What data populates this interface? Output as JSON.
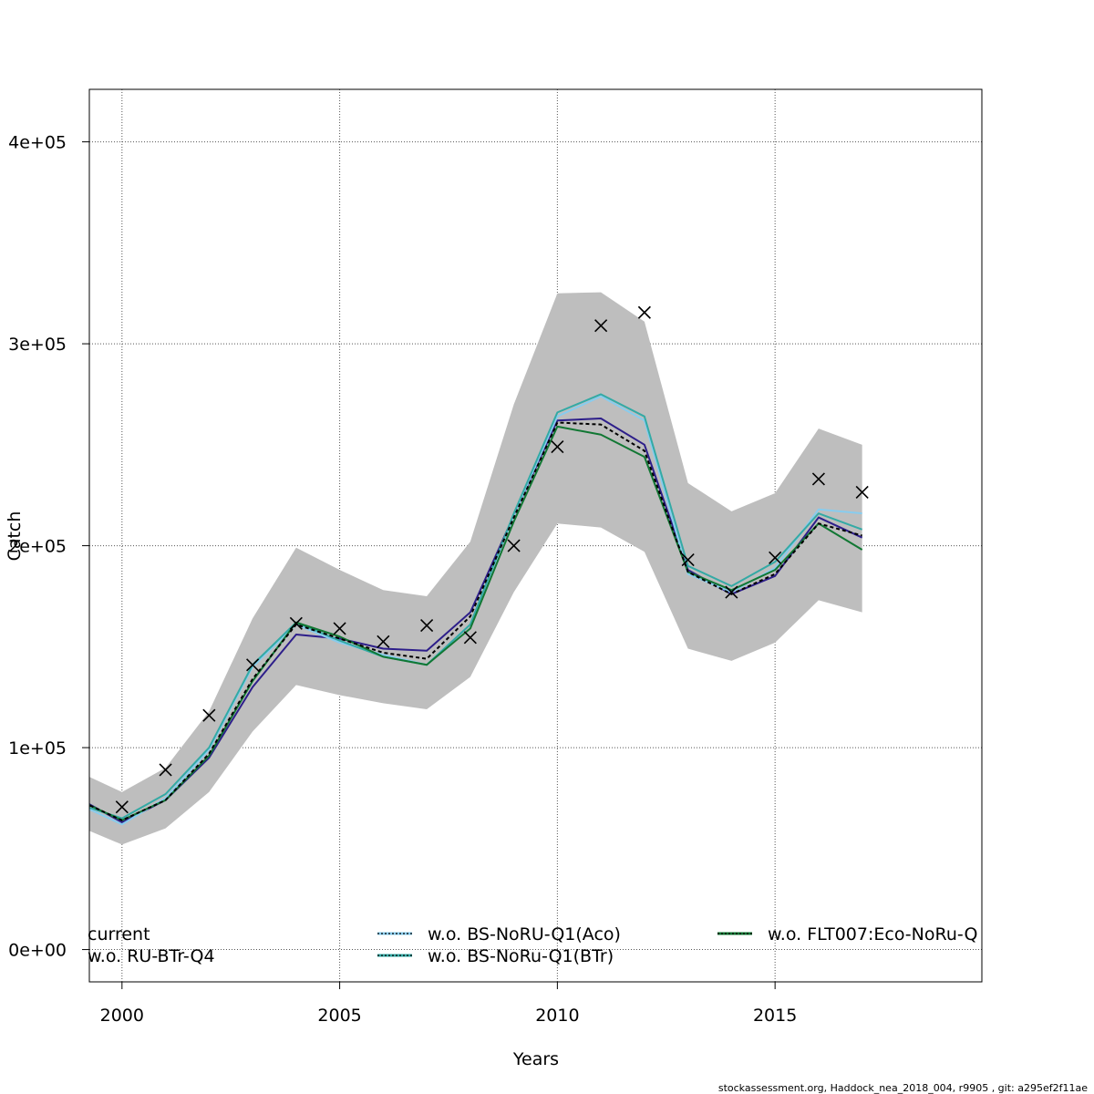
{
  "chart_data": {
    "type": "line",
    "xlabel": "Years",
    "ylabel": "Catch",
    "xlim": [
      1999.25,
      2019.75
    ],
    "ylim": [
      -16000,
      426000
    ],
    "x_ticks": [
      2000,
      2005,
      2010,
      2015
    ],
    "x_tick_labels": [
      "2000",
      "2005",
      "2010",
      "2015"
    ],
    "y_ticks": [
      0,
      100000,
      200000,
      300000,
      400000
    ],
    "y_tick_labels": [
      "0e+00",
      "1e+05",
      "2e+05",
      "3e+05",
      "4e+05"
    ],
    "grid": true,
    "legend_position": "bottom",
    "footer": "stockassessment.org, Haddock_nea_2018_004, r9905 , git: a295ef2f11ae",
    "confidence_band": {
      "x": [
        1999,
        2000,
        2001,
        2002,
        2003,
        2004,
        2005,
        2006,
        2007,
        2008,
        2009,
        2010,
        2011,
        2012,
        2013,
        2014,
        2015,
        2016,
        2017
      ],
      "upper": [
        88000,
        78000,
        90000,
        118000,
        164000,
        199000,
        188000,
        178000,
        175000,
        202000,
        270000,
        325000,
        325500,
        311000,
        231000,
        217000,
        226000,
        258000,
        250000
      ],
      "lower": [
        61000,
        52000,
        60000,
        78000,
        108000,
        131000,
        126000,
        122000,
        119000,
        135000,
        177000,
        211000,
        209000,
        197000,
        149000,
        143000,
        152000,
        173000,
        167000
      ],
      "color": "#bebebe"
    },
    "observed": {
      "x": [
        2000,
        2001,
        2002,
        2003,
        2004,
        2005,
        2006,
        2007,
        2008,
        2009,
        2010,
        2011,
        2012,
        2013,
        2014,
        2015,
        2016,
        2017
      ],
      "y": [
        70600,
        89000,
        116000,
        141000,
        161500,
        159000,
        152500,
        160500,
        154500,
        200000,
        249000,
        309000,
        315500,
        193000,
        177000,
        194000,
        233000,
        226500
      ]
    },
    "series": [
      {
        "name": "current",
        "color": "#000000",
        "dash": "4,3",
        "x": [
          1999,
          2000,
          2001,
          2002,
          2003,
          2004,
          2005,
          2006,
          2007,
          2008,
          2009,
          2010,
          2011,
          2012,
          2013,
          2014,
          2015,
          2016,
          2017
        ],
        "values": [
          74000,
          64000,
          74000,
          97000,
          134000,
          161000,
          154000,
          147000,
          144000,
          165000,
          214000,
          261000,
          260000,
          247000,
          187000,
          176000,
          186000,
          211000,
          205000
        ]
      },
      {
        "name": "w.o. RU-BTr-Q4",
        "color": "#2d1e8a",
        "dash": "",
        "x": [
          1999,
          2000,
          2001,
          2002,
          2003,
          2004,
          2005,
          2006,
          2007,
          2008,
          2009,
          2010,
          2011,
          2012,
          2013,
          2014,
          2015,
          2016,
          2017
        ],
        "values": [
          75000,
          63000,
          74000,
          95000,
          130000,
          156000,
          154000,
          149000,
          148000,
          167000,
          215000,
          262000,
          263000,
          250000,
          188000,
          176000,
          185000,
          214000,
          204000
        ]
      },
      {
        "name": "w.o. BS-NoRU-Q1(Aco)",
        "color": "#88ccee",
        "dash": "",
        "x": [
          1999,
          2000,
          2001,
          2002,
          2003,
          2004,
          2005,
          2006,
          2007,
          2008,
          2009,
          2010,
          2011,
          2012,
          2013,
          2014,
          2015,
          2016,
          2017
        ],
        "values": [
          72000,
          62000,
          75000,
          99000,
          140000,
          161000,
          152000,
          146000,
          141000,
          161000,
          215000,
          264000,
          274000,
          262000,
          186000,
          177000,
          189000,
          218000,
          216000
        ]
      },
      {
        "name": "w.o. BS-NoRu-Q1(BTr)",
        "color": "#33aaa5",
        "dash": "",
        "x": [
          1999,
          2000,
          2001,
          2002,
          2003,
          2004,
          2005,
          2006,
          2007,
          2008,
          2009,
          2010,
          2011,
          2012,
          2013,
          2014,
          2015,
          2016,
          2017
        ],
        "values": [
          72000,
          65000,
          77000,
          100000,
          141000,
          162000,
          153000,
          145000,
          141000,
          161000,
          216000,
          266000,
          275000,
          264000,
          190000,
          180000,
          192000,
          216000,
          208000
        ]
      },
      {
        "name": "w.o. FLT007:Eco-NoRu-Q",
        "color": "#117733",
        "dash": "",
        "x": [
          1999,
          2000,
          2001,
          2002,
          2003,
          2004,
          2005,
          2006,
          2007,
          2008,
          2009,
          2010,
          2011,
          2012,
          2013,
          2014,
          2015,
          2016,
          2017
        ],
        "values": [
          74000,
          64000,
          74000,
          96000,
          133000,
          162000,
          155000,
          145000,
          141000,
          159000,
          212000,
          259000,
          255000,
          244000,
          187000,
          178000,
          188000,
          211000,
          198000
        ]
      }
    ],
    "legend": [
      {
        "label": "current",
        "color": "#000000",
        "bg": "",
        "col": 0,
        "row": 0
      },
      {
        "label": "w.o. RU-BTr-Q4",
        "color": "#2d1e8a",
        "bg": "",
        "col": 0,
        "row": 1
      },
      {
        "label": "w.o. BS-NoRU-Q1(Aco)",
        "color": "#000000",
        "bg": "#88ccee",
        "col": 1,
        "row": 0
      },
      {
        "label": "w.o. BS-NoRu-Q1(BTr)",
        "color": "#000000",
        "bg": "#33aaa5",
        "col": 1,
        "row": 1
      },
      {
        "label": "w.o. FLT007:Eco-NoRu-Q",
        "color": "#000000",
        "bg": "#117733",
        "col": 2,
        "row": 0
      }
    ]
  }
}
